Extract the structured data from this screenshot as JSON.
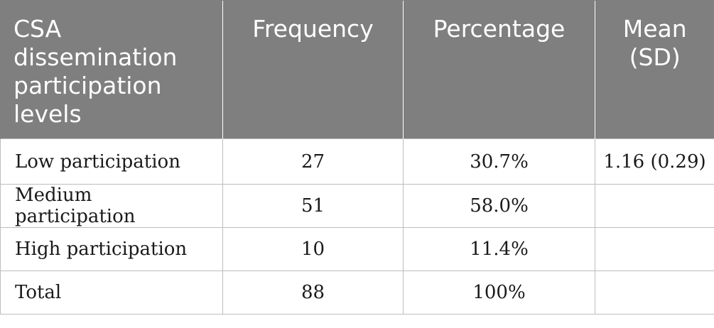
{
  "table": {
    "headers": [
      "CSA dissemination participation levels",
      "Frequency",
      "Percentage",
      "Mean (SD)"
    ],
    "rows": [
      {
        "level": "Low participation",
        "frequency": "27",
        "percentage": "30.7%",
        "mean_sd": "1.16 (0.29)"
      },
      {
        "level": "Medium participation",
        "frequency": "51",
        "percentage": "58.0%",
        "mean_sd": ""
      },
      {
        "level": "High participation",
        "frequency": "10",
        "percentage": "11.4%",
        "mean_sd": ""
      },
      {
        "level": "Total",
        "frequency": "88",
        "percentage": "100%",
        "mean_sd": ""
      }
    ]
  },
  "colors": {
    "header_bg": "#7f7f7f",
    "header_text": "#ffffff",
    "border": "#bdbdbd"
  }
}
